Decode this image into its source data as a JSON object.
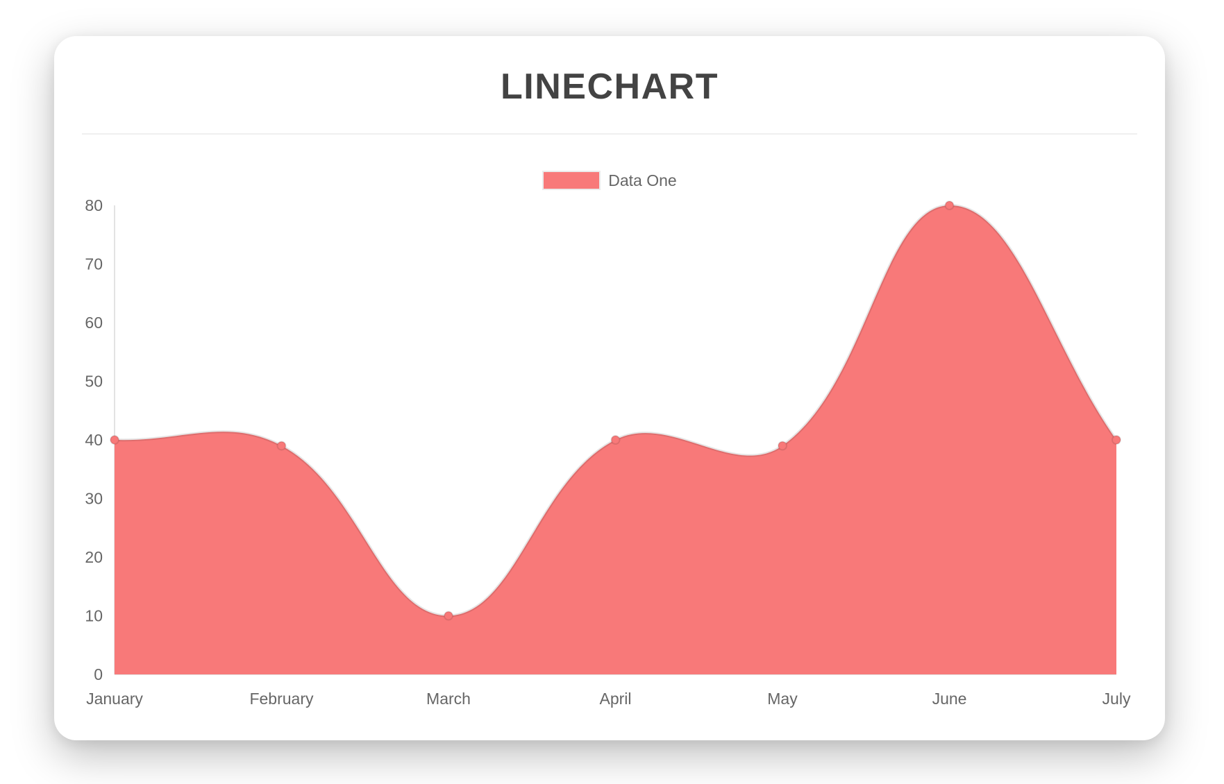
{
  "title": {
    "text": "LINECHART",
    "color": "#434343"
  },
  "legend": {
    "label": "Data One",
    "swatch_color": "#f87979",
    "swatch_border": "#ebebeb",
    "text_color": "#666666",
    "position": "top"
  },
  "chart_data": {
    "type": "area",
    "title": "LINECHART",
    "categories": [
      "January",
      "February",
      "March",
      "April",
      "May",
      "June",
      "July"
    ],
    "series": [
      {
        "name": "Data One",
        "values": [
          40,
          39,
          10,
          40,
          39,
          80,
          40
        ]
      }
    ],
    "xlabel": "",
    "ylabel": "",
    "ylim": [
      0,
      80
    ],
    "yticks": [
      0,
      10,
      20,
      30,
      40,
      50,
      60,
      70,
      80
    ],
    "grid": false,
    "legend_position": "top",
    "line_tension": 0.4,
    "colors": {
      "fill": "#f87979",
      "line": "rgba(0,0,0,0.10)",
      "point_fill": "#f87979",
      "point_border": "rgba(0,0,0,0.10)",
      "axis_line": "rgba(0,0,0,0.11)",
      "tick_text": "#666666"
    }
  }
}
